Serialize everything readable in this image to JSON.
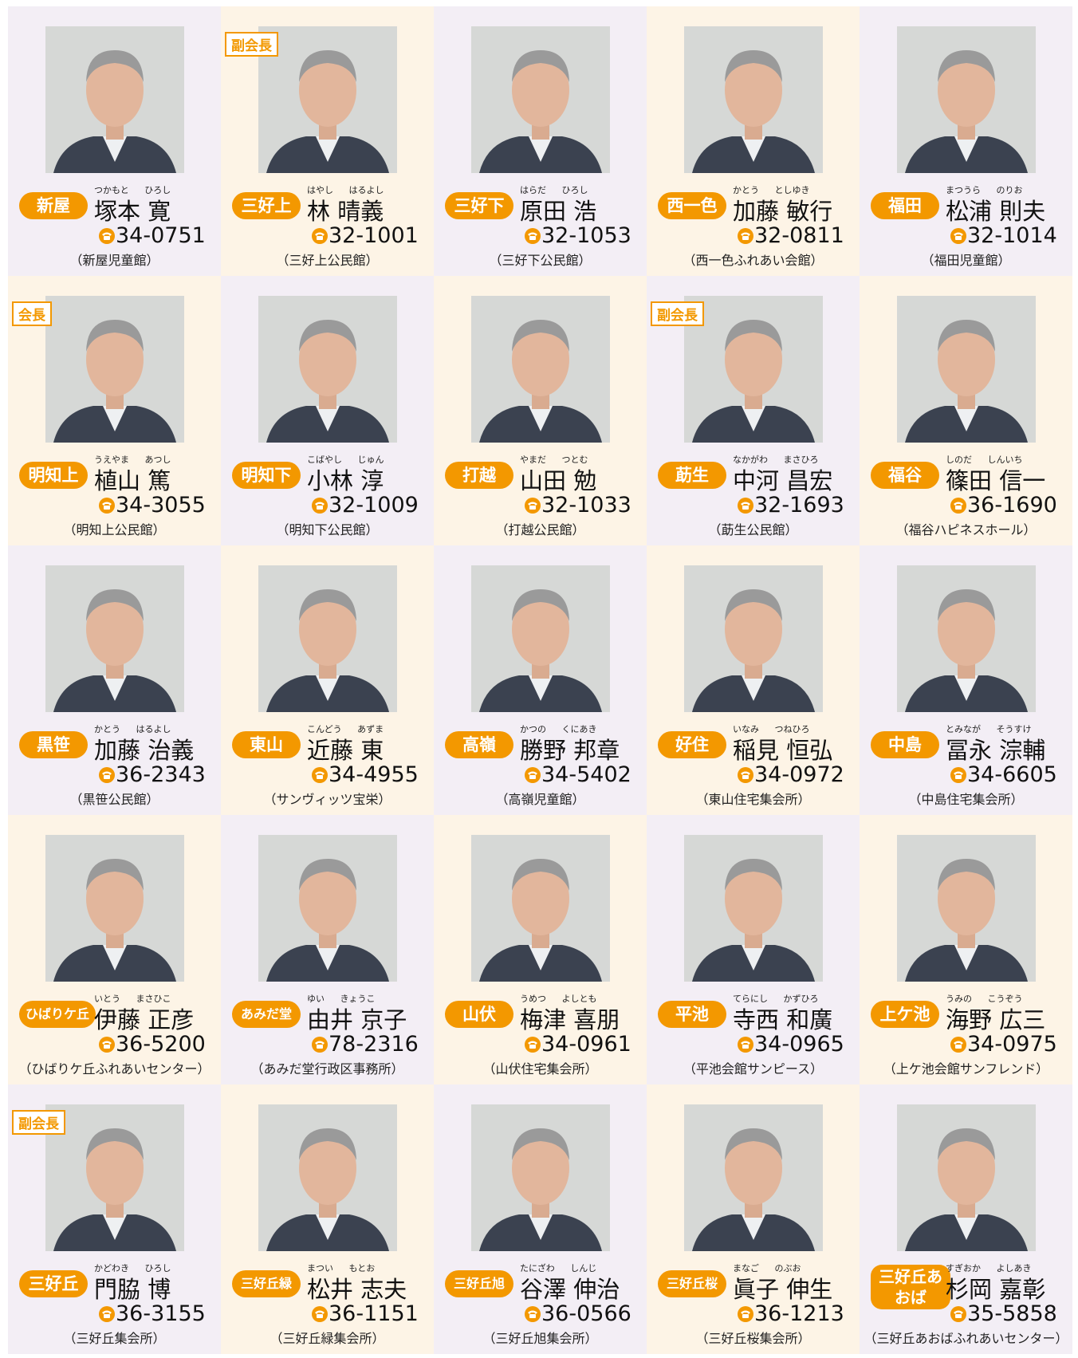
{
  "cells": [
    {
      "area": "新屋",
      "reading": "つかもと ひろし",
      "name": "塚本 寛",
      "phone": "34-0751",
      "place": "（新屋児童館）"
    },
    {
      "area": "三好上",
      "role": "副会長",
      "reading": "はやし はるよし",
      "name": "林 晴義",
      "phone": "32-1001",
      "place": "（三好上公民館）"
    },
    {
      "area": "三好下",
      "reading": "はらだ ひろし",
      "name": "原田 浩",
      "phone": "32-1053",
      "place": "（三好下公民館）"
    },
    {
      "area": "西一色",
      "reading": "かとう としゆき",
      "name": "加藤 敏行",
      "phone": "32-0811",
      "place": "（西一色ふれあい会館）"
    },
    {
      "area": "福田",
      "reading": "まつうら のりお",
      "name": "松浦 則夫",
      "phone": "32-1014",
      "place": "（福田児童館）"
    },
    {
      "area": "明知上",
      "role": "会長",
      "reading": "うえやま あつし",
      "name": "植山 篤",
      "phone": "34-3055",
      "place": "（明知上公民館）"
    },
    {
      "area": "明知下",
      "reading": "こばやし じゅん",
      "name": "小林 淳",
      "phone": "32-1009",
      "place": "（明知下公民館）"
    },
    {
      "area": "打越",
      "reading": "やまだ つとむ",
      "name": "山田 勉",
      "phone": "32-1033",
      "place": "（打越公民館）"
    },
    {
      "area": "莇生",
      "role": "副会長",
      "reading": "なかがわ まさひろ",
      "name": "中河 昌宏",
      "phone": "32-1693",
      "place": "（莇生公民館）"
    },
    {
      "area": "福谷",
      "reading": "しのだ しんいち",
      "name": "篠田 信一",
      "phone": "36-1690",
      "place": "（福谷ハピネスホール）"
    },
    {
      "area": "黒笹",
      "reading": "かとう はるよし",
      "name": "加藤 治義",
      "phone": "36-2343",
      "place": "（黒笹公民館）"
    },
    {
      "area": "東山",
      "reading": "こんどう あずま",
      "name": "近藤 東",
      "phone": "34-4955",
      "place": "（サンヴィッツ宝栄）"
    },
    {
      "area": "高嶺",
      "reading": "かつの くにあき",
      "name": "勝野 邦章",
      "phone": "34-5402",
      "place": "（高嶺児童館）"
    },
    {
      "area": "好住",
      "reading": "いなみ つねひろ",
      "name": "稲見 恒弘",
      "phone": "34-0972",
      "place": "（東山住宅集会所）"
    },
    {
      "area": "中島",
      "reading": "とみなが そうすけ",
      "name": "冨永 淙輔",
      "phone": "34-6605",
      "place": "（中島住宅集会所）"
    },
    {
      "area": "ひばりケ丘",
      "reading": "いとう まさひこ",
      "name": "伊藤 正彦",
      "phone": "36-5200",
      "place": "（ひばりケ丘ふれあいセンター）"
    },
    {
      "area": "あみだ堂",
      "reading": "ゆい きょうこ",
      "name": "由井 京子",
      "phone": "78-2316",
      "place": "（あみだ堂行政区事務所）"
    },
    {
      "area": "山伏",
      "reading": "うめつ よしとも",
      "name": "梅津 喜朋",
      "phone": "34-0961",
      "place": "（山伏住宅集会所）"
    },
    {
      "area": "平池",
      "reading": "てらにし かずひろ",
      "name": "寺西 和廣",
      "phone": "34-0965",
      "place": "（平池会館サンピース）"
    },
    {
      "area": "上ケ池",
      "reading": "うみの こうぞう",
      "name": "海野 広三",
      "phone": "34-0975",
      "place": "（上ケ池会館サンフレンド）"
    },
    {
      "area": "三好丘",
      "role": "副会長",
      "reading": "かどわき ひろし",
      "name": "門脇 博",
      "phone": "36-3155",
      "place": "（三好丘集会所）"
    },
    {
      "area": "三好丘緑",
      "reading": "まつい もとお",
      "name": "松井 志夫",
      "phone": "36-1151",
      "place": "（三好丘緑集会所）"
    },
    {
      "area": "三好丘旭",
      "reading": "たにざわ しんじ",
      "name": "谷澤 伸治",
      "phone": "36-0566",
      "place": "（三好丘旭集会所）"
    },
    {
      "area": "三好丘桜",
      "reading": "まなご のぶお",
      "name": "眞子 伸生",
      "phone": "36-1213",
      "place": "（三好丘桜集会所）"
    },
    {
      "area": "三好丘あおば",
      "reading": "すぎおか よしあき",
      "name": "杉岡 嘉彰",
      "phone": "35-5858",
      "place": "（三好丘あおばふれあいセンター）"
    }
  ]
}
